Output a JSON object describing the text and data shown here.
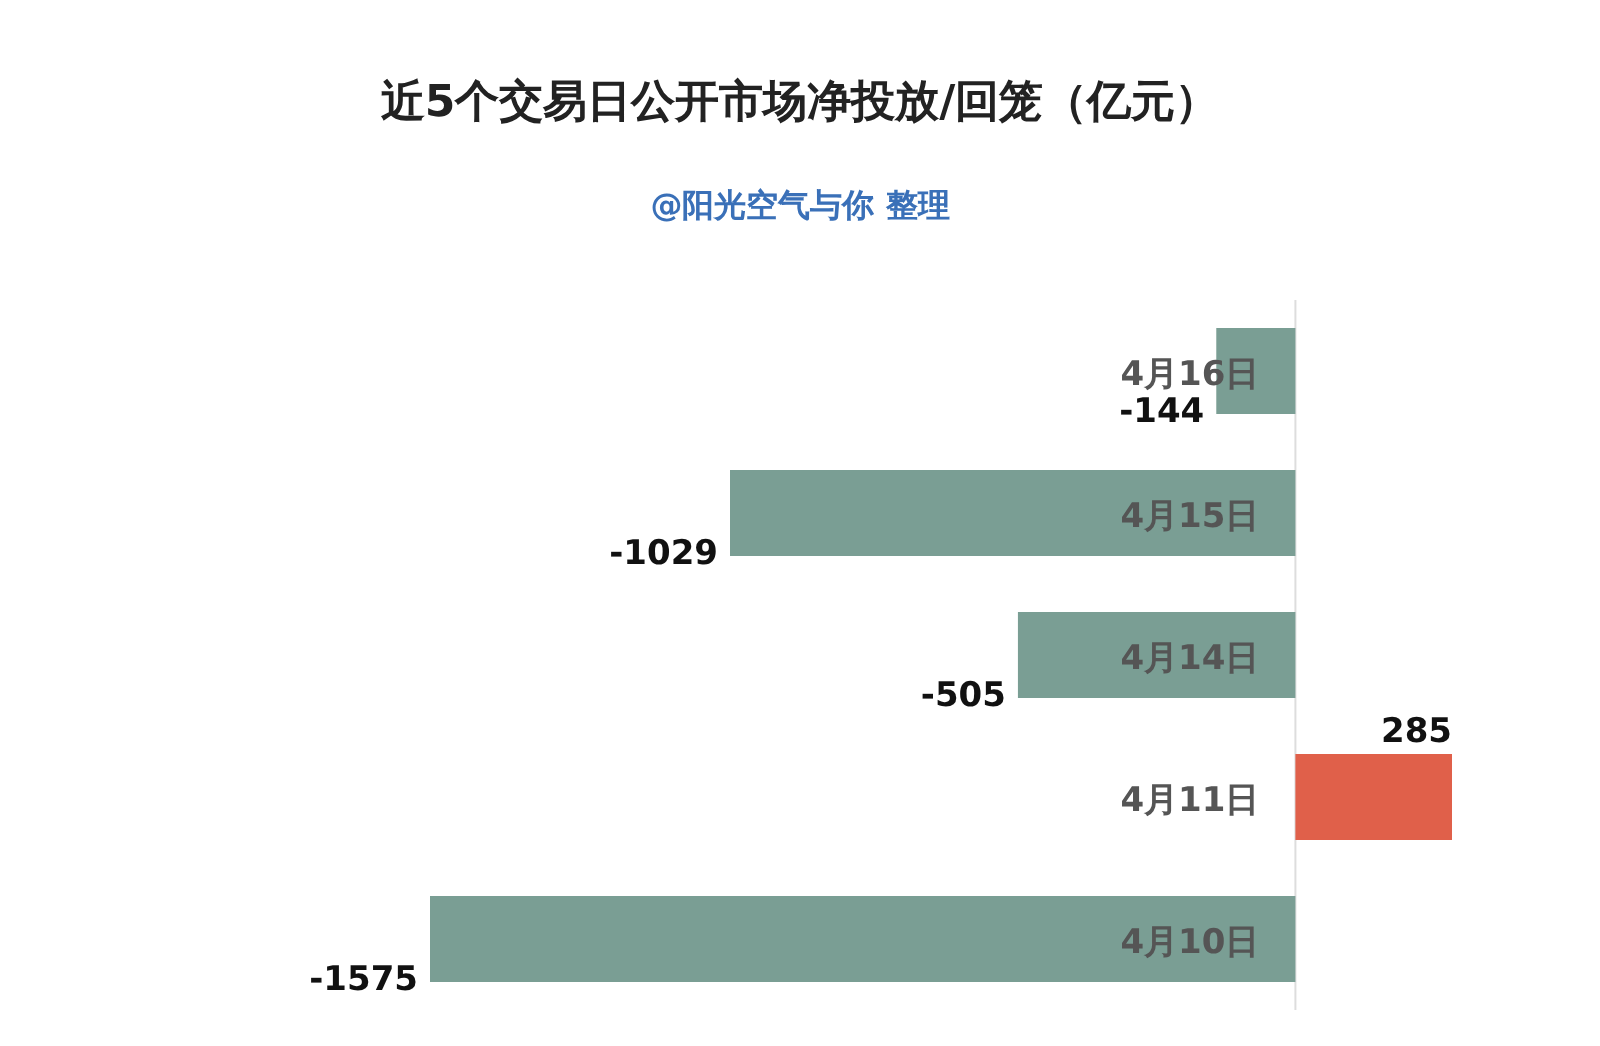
{
  "chart_data": {
    "type": "bar",
    "orientation": "horizontal",
    "title": "近5个交易日公开市场净投放/回笼（亿元）",
    "subtitle": "@阳光空气与你 整理",
    "categories": [
      "4月16日",
      "4月15日",
      "4月14日",
      "4月11日",
      "4月10日"
    ],
    "values": [
      -144,
      -1029,
      -505,
      285,
      -1575
    ],
    "colors": [
      "#7a9e94",
      "#7a9e94",
      "#7a9e94",
      "#e0604a",
      "#7a9e94"
    ],
    "data_labels": true
  }
}
